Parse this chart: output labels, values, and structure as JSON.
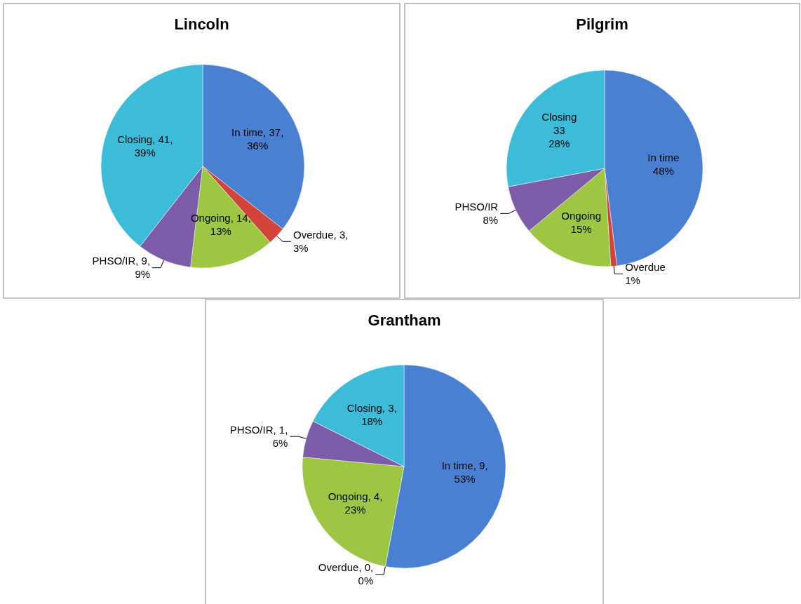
{
  "chart_data": [
    {
      "type": "pie",
      "title": "Lincoln",
      "categories": [
        "In time",
        "Overdue",
        "Ongoing",
        "PHSO/IR",
        "Closing"
      ],
      "values": [
        37,
        3,
        14,
        9,
        41
      ],
      "colors": [
        "#4a80d2",
        "#d2443a",
        "#9dc642",
        "#7c5ba8",
        "#3dbcd9"
      ],
      "value_labels": [
        ", 37, 36%",
        ", 3, 3%",
        ", 14, 13%",
        ", 9, 9%",
        ", 41, 39%"
      ]
    },
    {
      "type": "pie",
      "title": "Pilgrim",
      "categories": [
        "In time",
        "Overdue",
        "Ongoing",
        "PHSO/IR",
        "Closing"
      ],
      "values": [
        48,
        1,
        15,
        8,
        28
      ],
      "colors": [
        "#4a80d2",
        "#d2443a",
        "#9dc642",
        "#7c5ba8",
        "#3dbcd9"
      ],
      "value_labels": [
        "48%",
        "1%",
        "15%",
        "8%",
        "33 28%"
      ]
    },
    {
      "type": "pie",
      "title": "Grantham",
      "categories": [
        "In time",
        "Overdue",
        "Ongoing",
        "PHSO/IR",
        "Closing"
      ],
      "values": [
        9,
        0,
        4,
        1,
        3
      ],
      "colors": [
        "#4a80d2",
        "#d2443a",
        "#9dc642",
        "#7c5ba8",
        "#3dbcd9"
      ],
      "value_labels": [
        ", 9, 53%",
        ", 0, 0%",
        ", 4, 23%",
        ", 1, 6%",
        ", 3, 18%"
      ]
    }
  ]
}
